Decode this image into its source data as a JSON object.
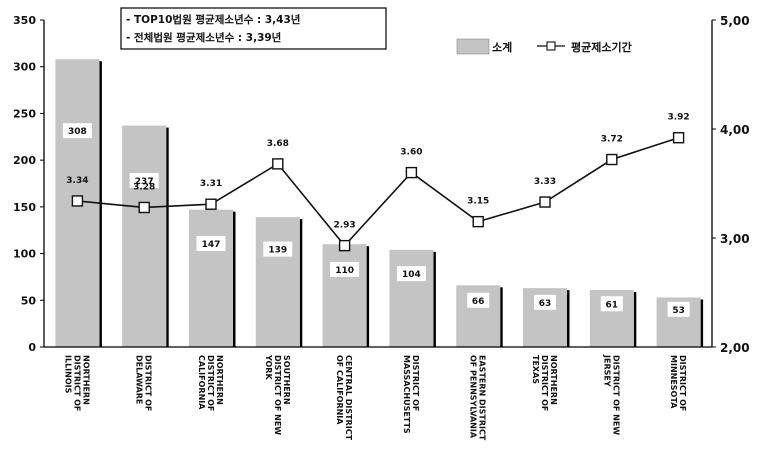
{
  "annotations": [
    "- TOP10법원 평균제소년수 : 3,43년",
    "- 전체법원 평균제소년수 : 3,39년"
  ],
  "chart_data": {
    "type": "bar",
    "categories": [
      "NORTHERN DISTRICT OF ILLINOIS",
      "DISTRICT OF DELAWARE",
      "NORTHERN DISTRICT OF CALIFORNIA",
      "SOUTHERN DISTRICT OF NEW YORK",
      "CENTRAL DISTRICT OF CALIFORNIA",
      "DISTRICT OF MASSACHUSETTS",
      "EASTERN DISTRICT OF PENNSYLVANIA",
      "NORTHERN DISTRICT OF TEXAS",
      "DISTRICT OF NEW JERSEY",
      "DISTRICT OF MINNESOTA"
    ],
    "series": [
      {
        "name": "소계",
        "type": "bar",
        "axis": "left",
        "values": [
          308,
          237,
          147,
          139,
          110,
          104,
          66,
          63,
          61,
          53
        ],
        "labels": [
          "308",
          "237",
          "147",
          "139",
          "110",
          "104",
          "66",
          "63",
          "61",
          "53"
        ]
      },
      {
        "name": "평균제소기간",
        "type": "line",
        "axis": "right",
        "values": [
          3.34,
          3.28,
          3.31,
          3.68,
          2.93,
          3.6,
          3.15,
          3.33,
          3.72,
          3.92
        ],
        "labels": [
          "3.34",
          "3.28",
          "3.31",
          "3.68",
          "2.93",
          "3.60",
          "3.15",
          "3.33",
          "3.72",
          "3.92"
        ]
      }
    ],
    "y_left": {
      "min": 0,
      "max": 350,
      "ticks": [
        0,
        50,
        100,
        150,
        200,
        250,
        300,
        350
      ]
    },
    "y_right": {
      "min": 2.0,
      "max": 5.0,
      "ticks": [
        "2,00",
        "3,00",
        "4,00",
        "5,00"
      ]
    },
    "legend": {
      "position": "top-right",
      "entries": [
        "소계",
        "평균제소기간"
      ]
    },
    "colors": {
      "bar": "#c4c4c4",
      "bar_shadow": "#000000",
      "line": "#111111",
      "marker_fill": "#ffffff"
    },
    "grid": false
  }
}
